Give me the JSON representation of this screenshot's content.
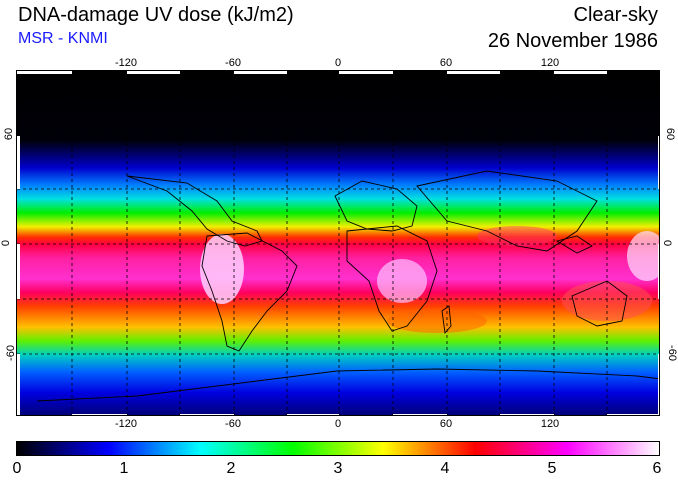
{
  "header": {
    "title": "DNA-damage UV dose (kJ/m2)",
    "subtitle": "MSR - KNMI",
    "sky_condition": "Clear-sky",
    "date": "26 November 1986"
  },
  "colors": {
    "subtitle": "#1a1aff"
  },
  "map": {
    "lon_ticks": [
      "-120",
      "-60",
      "0",
      "60",
      "120"
    ],
    "lat_ticks_left": [
      "60",
      "0",
      "-60"
    ],
    "lat_ticks_right": [
      "60",
      "0",
      "-60"
    ],
    "grid": "dashed, every 30 degrees"
  },
  "colorbar": {
    "labels": [
      "0",
      "1",
      "2",
      "3",
      "4",
      "5",
      "6"
    ],
    "colors": [
      "#000000",
      "#0000ff",
      "#00ffff",
      "#00ff00",
      "#ffff00",
      "#ff0000",
      "#ff00ff",
      "#ffffff"
    ],
    "min": 0,
    "max": 6
  },
  "chart_data": {
    "type": "heatmap",
    "title": "DNA-damage UV dose (kJ/m2)",
    "x": [
      "-120",
      "-60",
      "0",
      "60",
      "120"
    ],
    "y": [
      "60",
      "0",
      "-60"
    ],
    "description_values": {
      "scale_min": 0,
      "scale_max": 6,
      "units": "kJ/m2"
    },
    "zonal_profile": [
      {
        "lat": 90,
        "value": 0.0
      },
      {
        "lat": 60,
        "value": 0.1
      },
      {
        "lat": 45,
        "value": 0.7
      },
      {
        "lat": 30,
        "value": 2.2
      },
      {
        "lat": 20,
        "value": 3.2
      },
      {
        "lat": 10,
        "value": 4.2
      },
      {
        "lat": 0,
        "value": 4.8
      },
      {
        "lat": -10,
        "value": 5.2
      },
      {
        "lat": -20,
        "value": 5.0
      },
      {
        "lat": -30,
        "value": 4.3
      },
      {
        "lat": -40,
        "value": 3.8
      },
      {
        "lat": -50,
        "value": 2.6
      },
      {
        "lat": -60,
        "value": 1.8
      },
      {
        "lat": -70,
        "value": 1.3
      },
      {
        "lat": -90,
        "value": 0.9
      }
    ]
  }
}
